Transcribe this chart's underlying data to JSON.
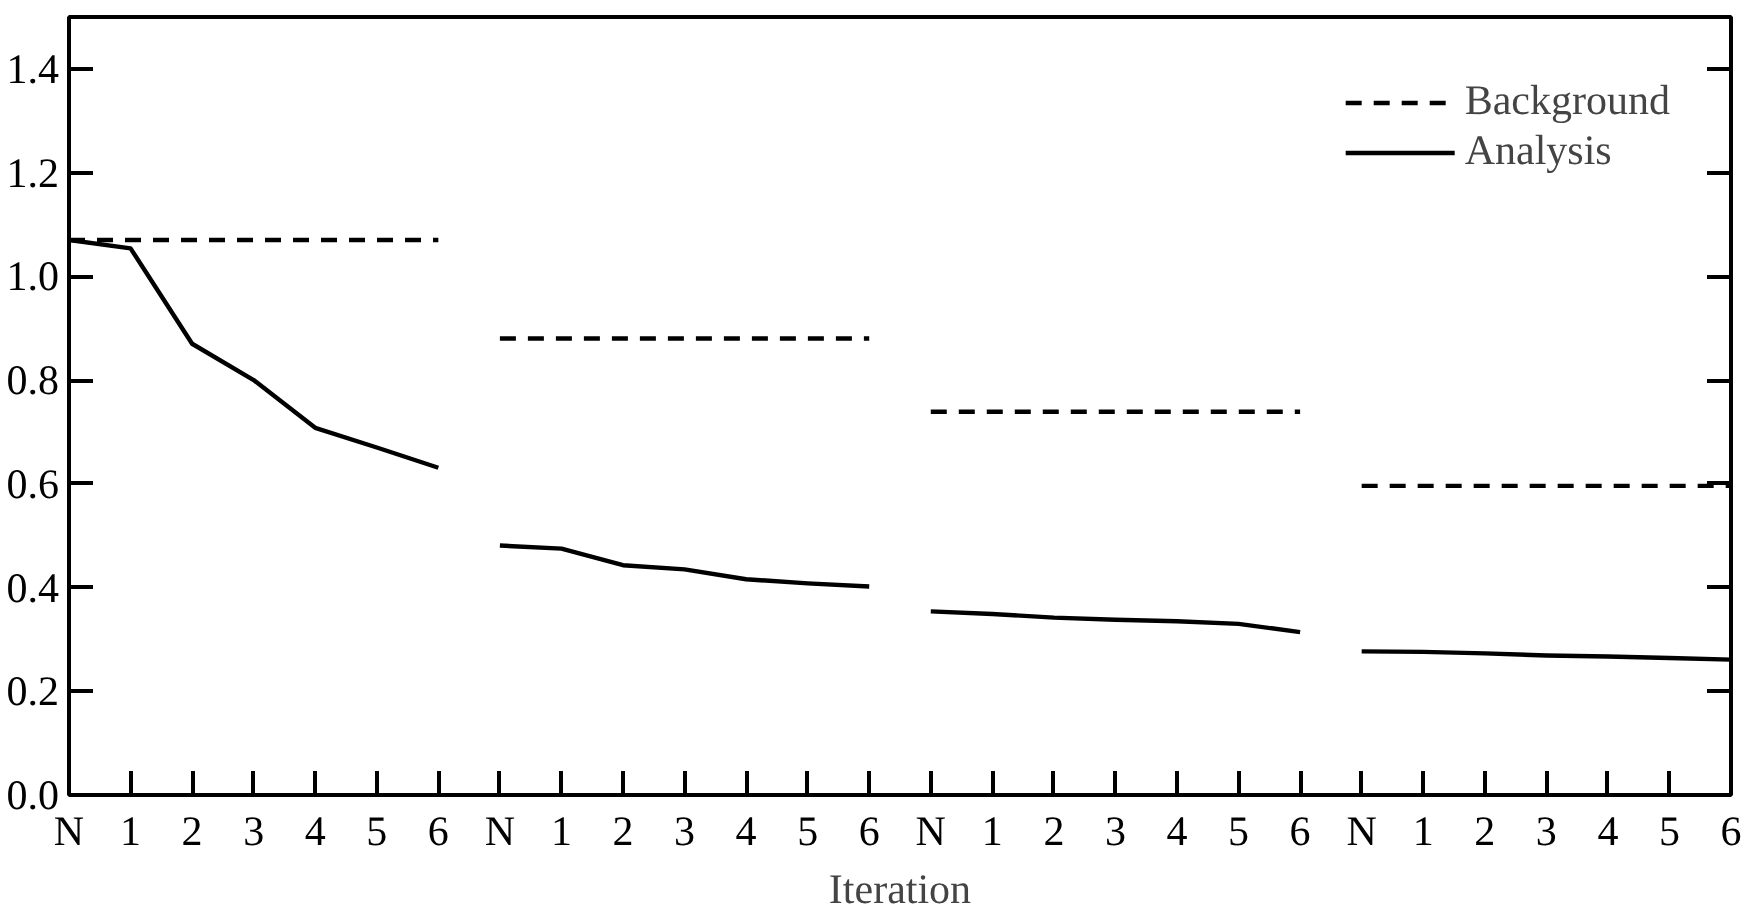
{
  "chart_data": {
    "type": "line",
    "xlabel": "Iteration",
    "categories": [
      "N",
      "1",
      "2",
      "3",
      "4",
      "5",
      "6",
      "N",
      "1",
      "2",
      "3",
      "4",
      "5",
      "6",
      "N",
      "1",
      "2",
      "3",
      "4",
      "5",
      "6",
      "N",
      "1",
      "2",
      "3",
      "4",
      "5",
      "6"
    ],
    "ylim": [
      0,
      1.5
    ],
    "yticks": [
      {
        "value": 0,
        "label": "0.0"
      },
      0.2,
      0.4,
      0.6,
      0.8,
      {
        "value": 1,
        "label": "1.0"
      },
      1.2,
      1.4
    ],
    "grid": false,
    "legend": "top right",
    "marker": "none",
    "series": [
      {
        "name": "Background",
        "color": "#000000",
        "line_style": "dashed",
        "values": [
          1.07,
          1.07,
          1.07,
          1.07,
          1.07,
          1.07,
          1.07,
          null,
          null,
          null,
          null,
          null,
          null,
          null,
          null,
          null,
          null,
          null,
          null,
          null,
          null,
          null,
          null,
          null,
          null,
          null,
          null,
          null
        ]
      },
      {
        "name": "Analysis",
        "color": "#000000",
        "line_style": "solid",
        "values": [
          1.07,
          1.054,
          0.87,
          0.8,
          0.708,
          0.67,
          0.631,
          null,
          null,
          null,
          null,
          null,
          null,
          null,
          null,
          null,
          null,
          null,
          null,
          null,
          null,
          null,
          null,
          null,
          null,
          null,
          null,
          null
        ]
      },
      {
        "color": "#000000",
        "line_style": "dashed",
        "values": [
          null,
          null,
          null,
          null,
          null,
          null,
          null,
          0.88,
          0.88,
          0.88,
          0.88,
          0.88,
          0.88,
          0.88,
          null,
          null,
          null,
          null,
          null,
          null,
          null,
          null,
          null,
          null,
          null,
          null,
          null,
          null
        ]
      },
      {
        "color": "#000000",
        "line_style": "solid",
        "values": [
          null,
          null,
          null,
          null,
          null,
          null,
          null,
          0.481,
          0.475,
          0.443,
          0.435,
          0.416,
          0.408,
          0.402,
          null,
          null,
          null,
          null,
          null,
          null,
          null,
          null,
          null,
          null,
          null,
          null,
          null,
          null
        ]
      },
      {
        "color": "#000000",
        "line_style": "dashed",
        "values": [
          null,
          null,
          null,
          null,
          null,
          null,
          null,
          null,
          null,
          null,
          null,
          null,
          null,
          null,
          0.739,
          0.739,
          0.739,
          0.739,
          0.739,
          0.739,
          0.739,
          null,
          null,
          null,
          null,
          null,
          null,
          null
        ]
      },
      {
        "color": "#000000",
        "line_style": "solid",
        "values": [
          null,
          null,
          null,
          null,
          null,
          null,
          null,
          null,
          null,
          null,
          null,
          null,
          null,
          null,
          0.354,
          0.349,
          0.342,
          0.338,
          0.335,
          0.33,
          0.314,
          null,
          null,
          null,
          null,
          null,
          null,
          null
        ]
      },
      {
        "color": "#000000",
        "line_style": "dashed",
        "values": [
          null,
          null,
          null,
          null,
          null,
          null,
          null,
          null,
          null,
          null,
          null,
          null,
          null,
          null,
          null,
          null,
          null,
          null,
          null,
          null,
          null,
          0.596,
          0.596,
          0.596,
          0.596,
          0.596,
          0.596,
          0.596
        ]
      },
      {
        "color": "#000000",
        "line_style": "solid",
        "values": [
          null,
          null,
          null,
          null,
          null,
          null,
          null,
          null,
          null,
          null,
          null,
          null,
          null,
          null,
          null,
          null,
          null,
          null,
          null,
          null,
          null,
          0.277,
          0.276,
          0.273,
          0.269,
          0.267,
          0.264,
          0.261
        ]
      }
    ]
  }
}
